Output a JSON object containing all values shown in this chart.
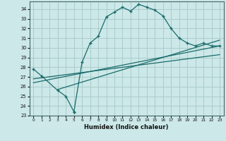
{
  "xlabel": "Humidex (Indice chaleur)",
  "bg_color": "#cce8e8",
  "grid_color": "#aacccc",
  "line_color": "#1a6b6b",
  "xlim": [
    -0.5,
    23.5
  ],
  "ylim": [
    23,
    34.8
  ],
  "xticks": [
    0,
    1,
    2,
    3,
    4,
    5,
    6,
    7,
    8,
    9,
    10,
    11,
    12,
    13,
    14,
    15,
    16,
    17,
    18,
    19,
    20,
    21,
    22,
    23
  ],
  "yticks": [
    23,
    24,
    25,
    26,
    27,
    28,
    29,
    30,
    31,
    32,
    33,
    34
  ],
  "curve1_x": [
    0,
    1,
    3,
    4,
    5,
    5,
    6,
    7,
    8,
    9,
    10,
    11,
    12,
    13,
    14,
    15,
    16,
    17,
    18,
    19,
    20,
    21,
    22,
    23
  ],
  "curve1_y": [
    27.8,
    27.1,
    25.6,
    25.0,
    23.4,
    23.4,
    28.5,
    30.5,
    31.2,
    33.2,
    33.7,
    34.2,
    33.8,
    34.5,
    34.2,
    33.9,
    33.3,
    32.0,
    31.0,
    30.5,
    30.2,
    30.5,
    30.2,
    30.2
  ],
  "line1_x": [
    0,
    23
  ],
  "line1_y": [
    26.8,
    29.3
  ],
  "line2_x": [
    0,
    23
  ],
  "line2_y": [
    26.4,
    30.2
  ],
  "line3_x": [
    3,
    23
  ],
  "line3_y": [
    25.7,
    30.8
  ]
}
